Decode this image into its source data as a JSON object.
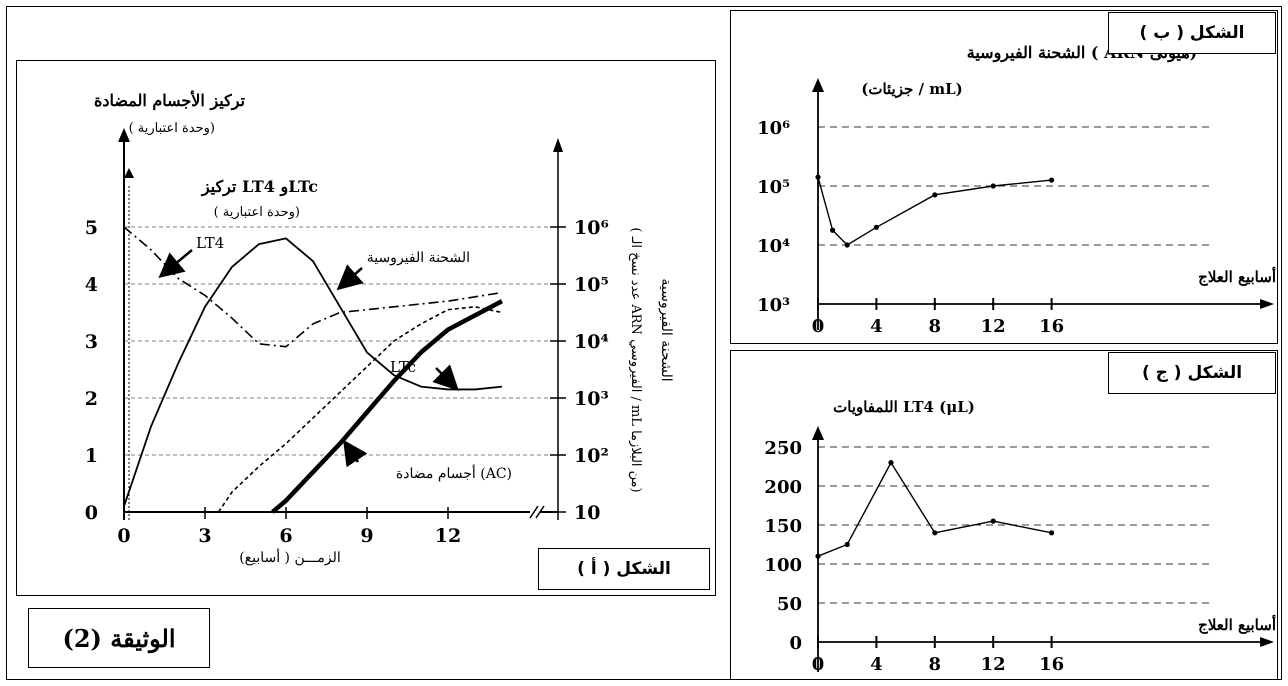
{
  "document_label": "الوثيقة (2)",
  "chart_data": [
    {
      "id": "A",
      "type": "line",
      "panel_label": "الشكل ( أ )",
      "xlabel": "الزمـــن ( أسابيع)",
      "x_ticks": [
        "0",
        "3",
        "6",
        "9",
        "12"
      ],
      "xlim": [
        0,
        14
      ],
      "left_axis_title_1": "تركيز الأجسام المضادة",
      "left_axis_subtitle_1": "( وحدة اعتبارية)",
      "left_axis_title_2": "تركيز LT4 وLTc",
      "left_axis_subtitle_2": "( وحدة اعتبارية)",
      "left_ticks": [
        "0",
        "1",
        "2",
        "3",
        "4",
        "5"
      ],
      "ylim_left": [
        0,
        5
      ],
      "right_axis_title_1": "الشحنة الفيروسية",
      "right_axis_title_2": "( عدد نسخ الـ ARN الفيروسي / mL من البلازما)",
      "right_ticks": [
        "10",
        "10²",
        "10³",
        "10⁴",
        "10⁵",
        "10⁶"
      ],
      "right_scale": "log",
      "grid": "dashed horizontal",
      "series": [
        {
          "name": "الشحنة الفيروسية",
          "style": "solid",
          "x": [
            0,
            1,
            2,
            3,
            4,
            5,
            6,
            7,
            8,
            9,
            10,
            11,
            12,
            13,
            14
          ],
          "y": [
            0.1,
            1.5,
            2.6,
            3.6,
            4.3,
            4.7,
            4.8,
            4.4,
            3.6,
            2.8,
            2.4,
            2.2,
            2.15,
            2.15,
            2.2
          ]
        },
        {
          "name": "LT4",
          "style": "dash-dot",
          "x": [
            0,
            1,
            2,
            3,
            4,
            5,
            6,
            7,
            8,
            10,
            12,
            14
          ],
          "y": [
            5.0,
            4.6,
            4.1,
            3.8,
            3.4,
            2.95,
            2.9,
            3.3,
            3.5,
            3.6,
            3.7,
            3.85
          ]
        },
        {
          "name": "LTc",
          "style": "short-dash",
          "x": [
            3.5,
            4,
            5,
            6,
            7,
            8,
            9,
            10,
            11,
            12,
            13,
            14
          ],
          "y": [
            0,
            0.35,
            0.8,
            1.2,
            1.65,
            2.1,
            2.55,
            3.0,
            3.3,
            3.55,
            3.6,
            3.5
          ]
        },
        {
          "name": "أجسام مضادة (AC)",
          "style": "thick-solid",
          "x": [
            5.5,
            6,
            7,
            8,
            9,
            10,
            11,
            12,
            13,
            14
          ],
          "y": [
            0,
            0.2,
            0.7,
            1.2,
            1.75,
            2.3,
            2.8,
            3.2,
            3.45,
            3.7
          ]
        }
      ],
      "annotations": [
        "LT4",
        "الشحنة الفيروسية",
        "LTc",
        "أجسام مضادة (AC)"
      ]
    },
    {
      "id": "B",
      "type": "line",
      "panel_label": "الشكل ( ب )",
      "title": "الشحنة الفيروسية ( ARN هيولى)",
      "ylabel": "(جزيئات / mL)",
      "xlabel": "أسابيع العلاج",
      "x_ticks": [
        "0",
        "4",
        "8",
        "12",
        "16"
      ],
      "xlim": [
        0,
        22
      ],
      "y_ticks": [
        "10³",
        "10⁴",
        "10⁵",
        "10⁶"
      ],
      "ylim_log10": [
        3,
        6.5
      ],
      "grid": "dashed horizontal",
      "x": [
        0,
        1,
        2,
        4,
        8,
        12,
        16
      ],
      "y_log10": [
        5.15,
        4.25,
        4.0,
        4.3,
        4.85,
        5.0,
        5.1
      ]
    },
    {
      "id": "C",
      "type": "line",
      "panel_label": "الشكل ( ج )",
      "title": "اللمفاويات LT4 (μL)",
      "xlabel": "أسابيع العلاج",
      "x_ticks": [
        "0",
        "4",
        "8",
        "12",
        "16"
      ],
      "xlim": [
        0,
        22
      ],
      "y_ticks": [
        "0",
        "50",
        "100",
        "150",
        "200",
        "250"
      ],
      "ylim": [
        0,
        270
      ],
      "grid": "dashed horizontal",
      "x": [
        0,
        2,
        5,
        8,
        12,
        16
      ],
      "y": [
        110,
        125,
        230,
        140,
        155,
        140
      ]
    }
  ]
}
